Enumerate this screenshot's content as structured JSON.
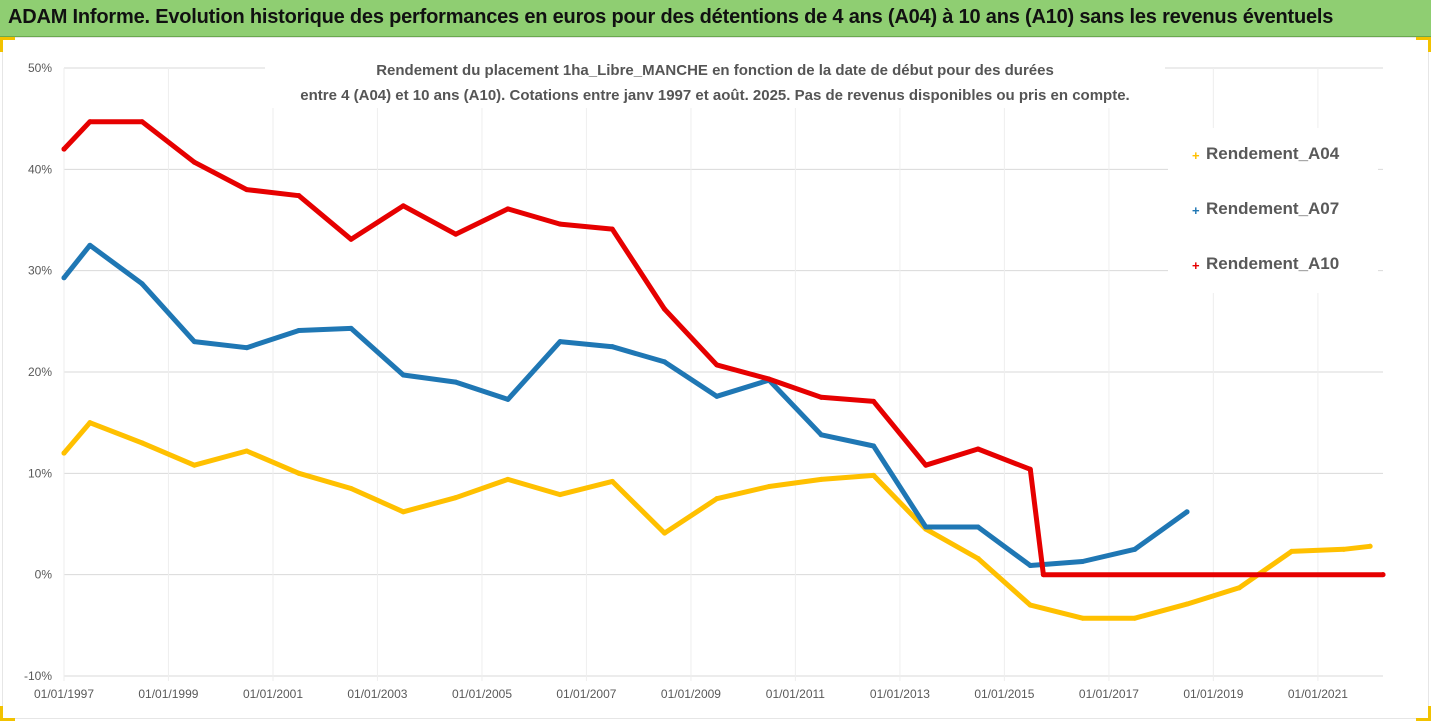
{
  "banner": {
    "title": "ADAM Informe. Evolution historique des performances en euros pour des détentions de 4 ans (A04) à 10 ans (A10) sans les revenus éventuels"
  },
  "colors": {
    "banner_bg": "#8fce72",
    "A04": "#ffc000",
    "A07": "#1f77b4",
    "A10": "#e60000",
    "frame_accent": "#f2c200"
  },
  "chart_data": {
    "type": "line",
    "title_line1": "Rendement du placement 1ha_Libre_MANCHE en fonction de la date de début pour des durées",
    "title_line2": "entre 4 (A04) et 10 ans (A10). Cotations entre janv 1997 et août. 2025. Pas de revenus disponibles ou pris en compte.",
    "xlabel": "",
    "ylabel": "",
    "x_axis": "date",
    "xlim": [
      "1997-01-01",
      "2022-04-01"
    ],
    "ylim": [
      -0.1,
      0.5
    ],
    "x_ticks": [
      "01/01/1997",
      "01/01/1999",
      "01/01/2001",
      "01/01/2003",
      "01/01/2005",
      "01/01/2007",
      "01/01/2009",
      "01/01/2011",
      "01/01/2013",
      "01/01/2015",
      "01/01/2017",
      "01/01/2019",
      "01/01/2021"
    ],
    "y_ticks": [
      "50%",
      "40%",
      "30%",
      "20%",
      "10%",
      "0%",
      "-10%"
    ],
    "y_tick_values": [
      0.5,
      0.4,
      0.3,
      0.2,
      0.1,
      0.0,
      -0.1
    ],
    "grid": "horizontal",
    "legend_position": "right",
    "series": [
      {
        "name": "Rendement_A04",
        "color_key": "A04",
        "points": [
          [
            "1997-01-01",
            0.12
          ],
          [
            "1997-07-01",
            0.15
          ],
          [
            "1998-07-01",
            0.13
          ],
          [
            "1999-07-01",
            0.108
          ],
          [
            "2000-07-01",
            0.122
          ],
          [
            "2001-07-01",
            0.1
          ],
          [
            "2002-07-01",
            0.085
          ],
          [
            "2003-07-01",
            0.062
          ],
          [
            "2004-07-01",
            0.076
          ],
          [
            "2005-07-01",
            0.094
          ],
          [
            "2006-07-01",
            0.079
          ],
          [
            "2007-07-01",
            0.092
          ],
          [
            "2008-07-01",
            0.041
          ],
          [
            "2009-07-01",
            0.075
          ],
          [
            "2010-07-01",
            0.087
          ],
          [
            "2011-07-01",
            0.094
          ],
          [
            "2012-07-01",
            0.098
          ],
          [
            "2013-07-01",
            0.045
          ],
          [
            "2014-07-01",
            0.016
          ],
          [
            "2015-07-01",
            -0.03
          ],
          [
            "2016-07-01",
            -0.043
          ],
          [
            "2017-07-01",
            -0.043
          ],
          [
            "2018-07-01",
            -0.029
          ],
          [
            "2019-07-01",
            -0.013
          ],
          [
            "2020-07-01",
            0.023
          ],
          [
            "2021-07-01",
            0.025
          ],
          [
            "2022-01-01",
            0.028
          ]
        ]
      },
      {
        "name": "Rendement_A07",
        "color_key": "A07",
        "points": [
          [
            "1997-01-01",
            0.293
          ],
          [
            "1997-07-01",
            0.325
          ],
          [
            "1998-07-01",
            0.287
          ],
          [
            "1999-07-01",
            0.23
          ],
          [
            "2000-07-01",
            0.224
          ],
          [
            "2001-07-01",
            0.241
          ],
          [
            "2002-07-01",
            0.243
          ],
          [
            "2003-07-01",
            0.197
          ],
          [
            "2004-07-01",
            0.19
          ],
          [
            "2005-07-01",
            0.173
          ],
          [
            "2006-07-01",
            0.23
          ],
          [
            "2007-07-01",
            0.225
          ],
          [
            "2008-07-01",
            0.21
          ],
          [
            "2009-07-01",
            0.176
          ],
          [
            "2010-07-01",
            0.192
          ],
          [
            "2011-07-01",
            0.138
          ],
          [
            "2012-07-01",
            0.127
          ],
          [
            "2013-07-01",
            0.047
          ],
          [
            "2014-07-01",
            0.047
          ],
          [
            "2015-07-01",
            0.009
          ],
          [
            "2016-07-01",
            0.013
          ],
          [
            "2017-07-01",
            0.025
          ],
          [
            "2018-07-01",
            0.062
          ]
        ]
      },
      {
        "name": "Rendement_A10",
        "color_key": "A10",
        "points": [
          [
            "1997-01-01",
            0.42
          ],
          [
            "1997-07-01",
            0.447
          ],
          [
            "1998-07-01",
            0.447
          ],
          [
            "1999-07-01",
            0.407
          ],
          [
            "2000-07-01",
            0.38
          ],
          [
            "2001-07-01",
            0.374
          ],
          [
            "2002-07-01",
            0.331
          ],
          [
            "2003-07-01",
            0.364
          ],
          [
            "2004-07-01",
            0.336
          ],
          [
            "2005-07-01",
            0.361
          ],
          [
            "2006-07-01",
            0.346
          ],
          [
            "2007-07-01",
            0.341
          ],
          [
            "2008-07-01",
            0.262
          ],
          [
            "2009-07-01",
            0.207
          ],
          [
            "2010-07-01",
            0.193
          ],
          [
            "2011-07-01",
            0.175
          ],
          [
            "2012-07-01",
            0.171
          ],
          [
            "2013-07-01",
            0.108
          ],
          [
            "2014-07-01",
            0.124
          ],
          [
            "2015-07-01",
            0.104
          ],
          [
            "2015-10-01",
            0.0
          ],
          [
            "2022-04-01",
            0.0
          ]
        ]
      }
    ]
  }
}
